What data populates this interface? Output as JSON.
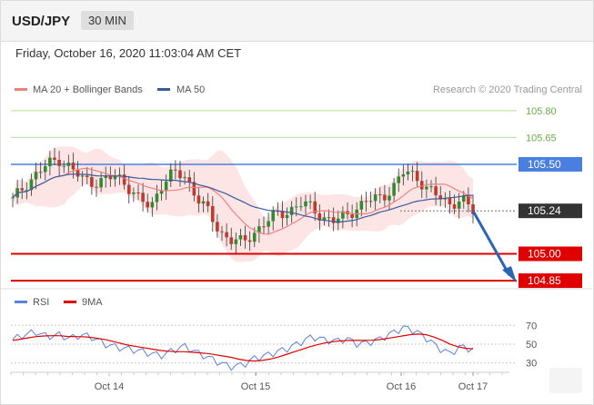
{
  "header": {
    "pair": "USD/JPY",
    "timeframe": "30 MIN"
  },
  "timestamp": "Friday, October 16, 2020 11:03:04 AM CET",
  "credit": "Research © 2020 Trading Central",
  "colors": {
    "ma20": "#f08080",
    "ma50": "#3a5a9a",
    "bands": "#fde0e0",
    "up": "#2e8b2e",
    "down": "#c0392b",
    "resistance": "#6fa84a",
    "pivot": "#4a7fe0",
    "support": "#e00000",
    "arrow": "#2b64b4",
    "rsi": "#5b80e0",
    "ma9": "#e00000"
  },
  "chart_data": [
    {
      "type": "candlestick",
      "legend": [
        "MA 20 + Bollinger Bands",
        "MA 50"
      ],
      "ylim": [
        104.82,
        105.86
      ],
      "x_ticks": [
        "Oct 14",
        "Oct 15",
        "Oct 16",
        "Oct 17"
      ],
      "levels": [
        {
          "value": 105.8,
          "label": "105.80",
          "kind": "resistance"
        },
        {
          "value": 105.65,
          "label": "105.65",
          "kind": "resistance"
        },
        {
          "value": 105.5,
          "label": "105.50",
          "kind": "pivot"
        },
        {
          "value": 105.24,
          "label": "105.24",
          "kind": "current"
        },
        {
          "value": 105.0,
          "label": "105.00",
          "kind": "support"
        },
        {
          "value": 104.85,
          "label": "104.85",
          "kind": "support"
        }
      ],
      "close_path": [
        105.3,
        105.38,
        105.44,
        105.5,
        105.53,
        105.48,
        105.42,
        105.4,
        105.41,
        105.44,
        105.38,
        105.3,
        105.26,
        105.4,
        105.45,
        105.43,
        105.32,
        105.23,
        105.12,
        105.08,
        105.06,
        105.12,
        105.18,
        105.22,
        105.24,
        105.28,
        105.26,
        105.2,
        105.18,
        105.22,
        105.26,
        105.3,
        105.32,
        105.36,
        105.46,
        105.44,
        105.36,
        105.32,
        105.28,
        105.3,
        105.24
      ],
      "projection": {
        "from": 105.24,
        "to": 104.85
      }
    },
    {
      "type": "line",
      "legend": [
        "RSI",
        "9MA"
      ],
      "ylim": [
        22,
        78
      ],
      "y_ticks": [
        70,
        50,
        30
      ],
      "series": [
        {
          "name": "RSI",
          "values": [
            55,
            60,
            63,
            58,
            60,
            56,
            60,
            57,
            50,
            47,
            45,
            43,
            40,
            38,
            44,
            48,
            41,
            36,
            30,
            26,
            28,
            35,
            38,
            42,
            46,
            52,
            58,
            55,
            53,
            56,
            50,
            52,
            56,
            62,
            68,
            64,
            56,
            46,
            40,
            48,
            44
          ]
        },
        {
          "name": "9MA",
          "values": [
            54,
            56,
            58,
            59,
            59,
            58,
            58,
            57,
            55,
            52,
            49,
            47,
            45,
            43,
            42,
            42,
            41,
            40,
            38,
            36,
            33,
            32,
            33,
            36,
            40,
            44,
            48,
            51,
            53,
            54,
            54,
            54,
            55,
            57,
            59,
            61,
            60,
            56,
            50,
            46,
            45
          ]
        }
      ]
    }
  ]
}
